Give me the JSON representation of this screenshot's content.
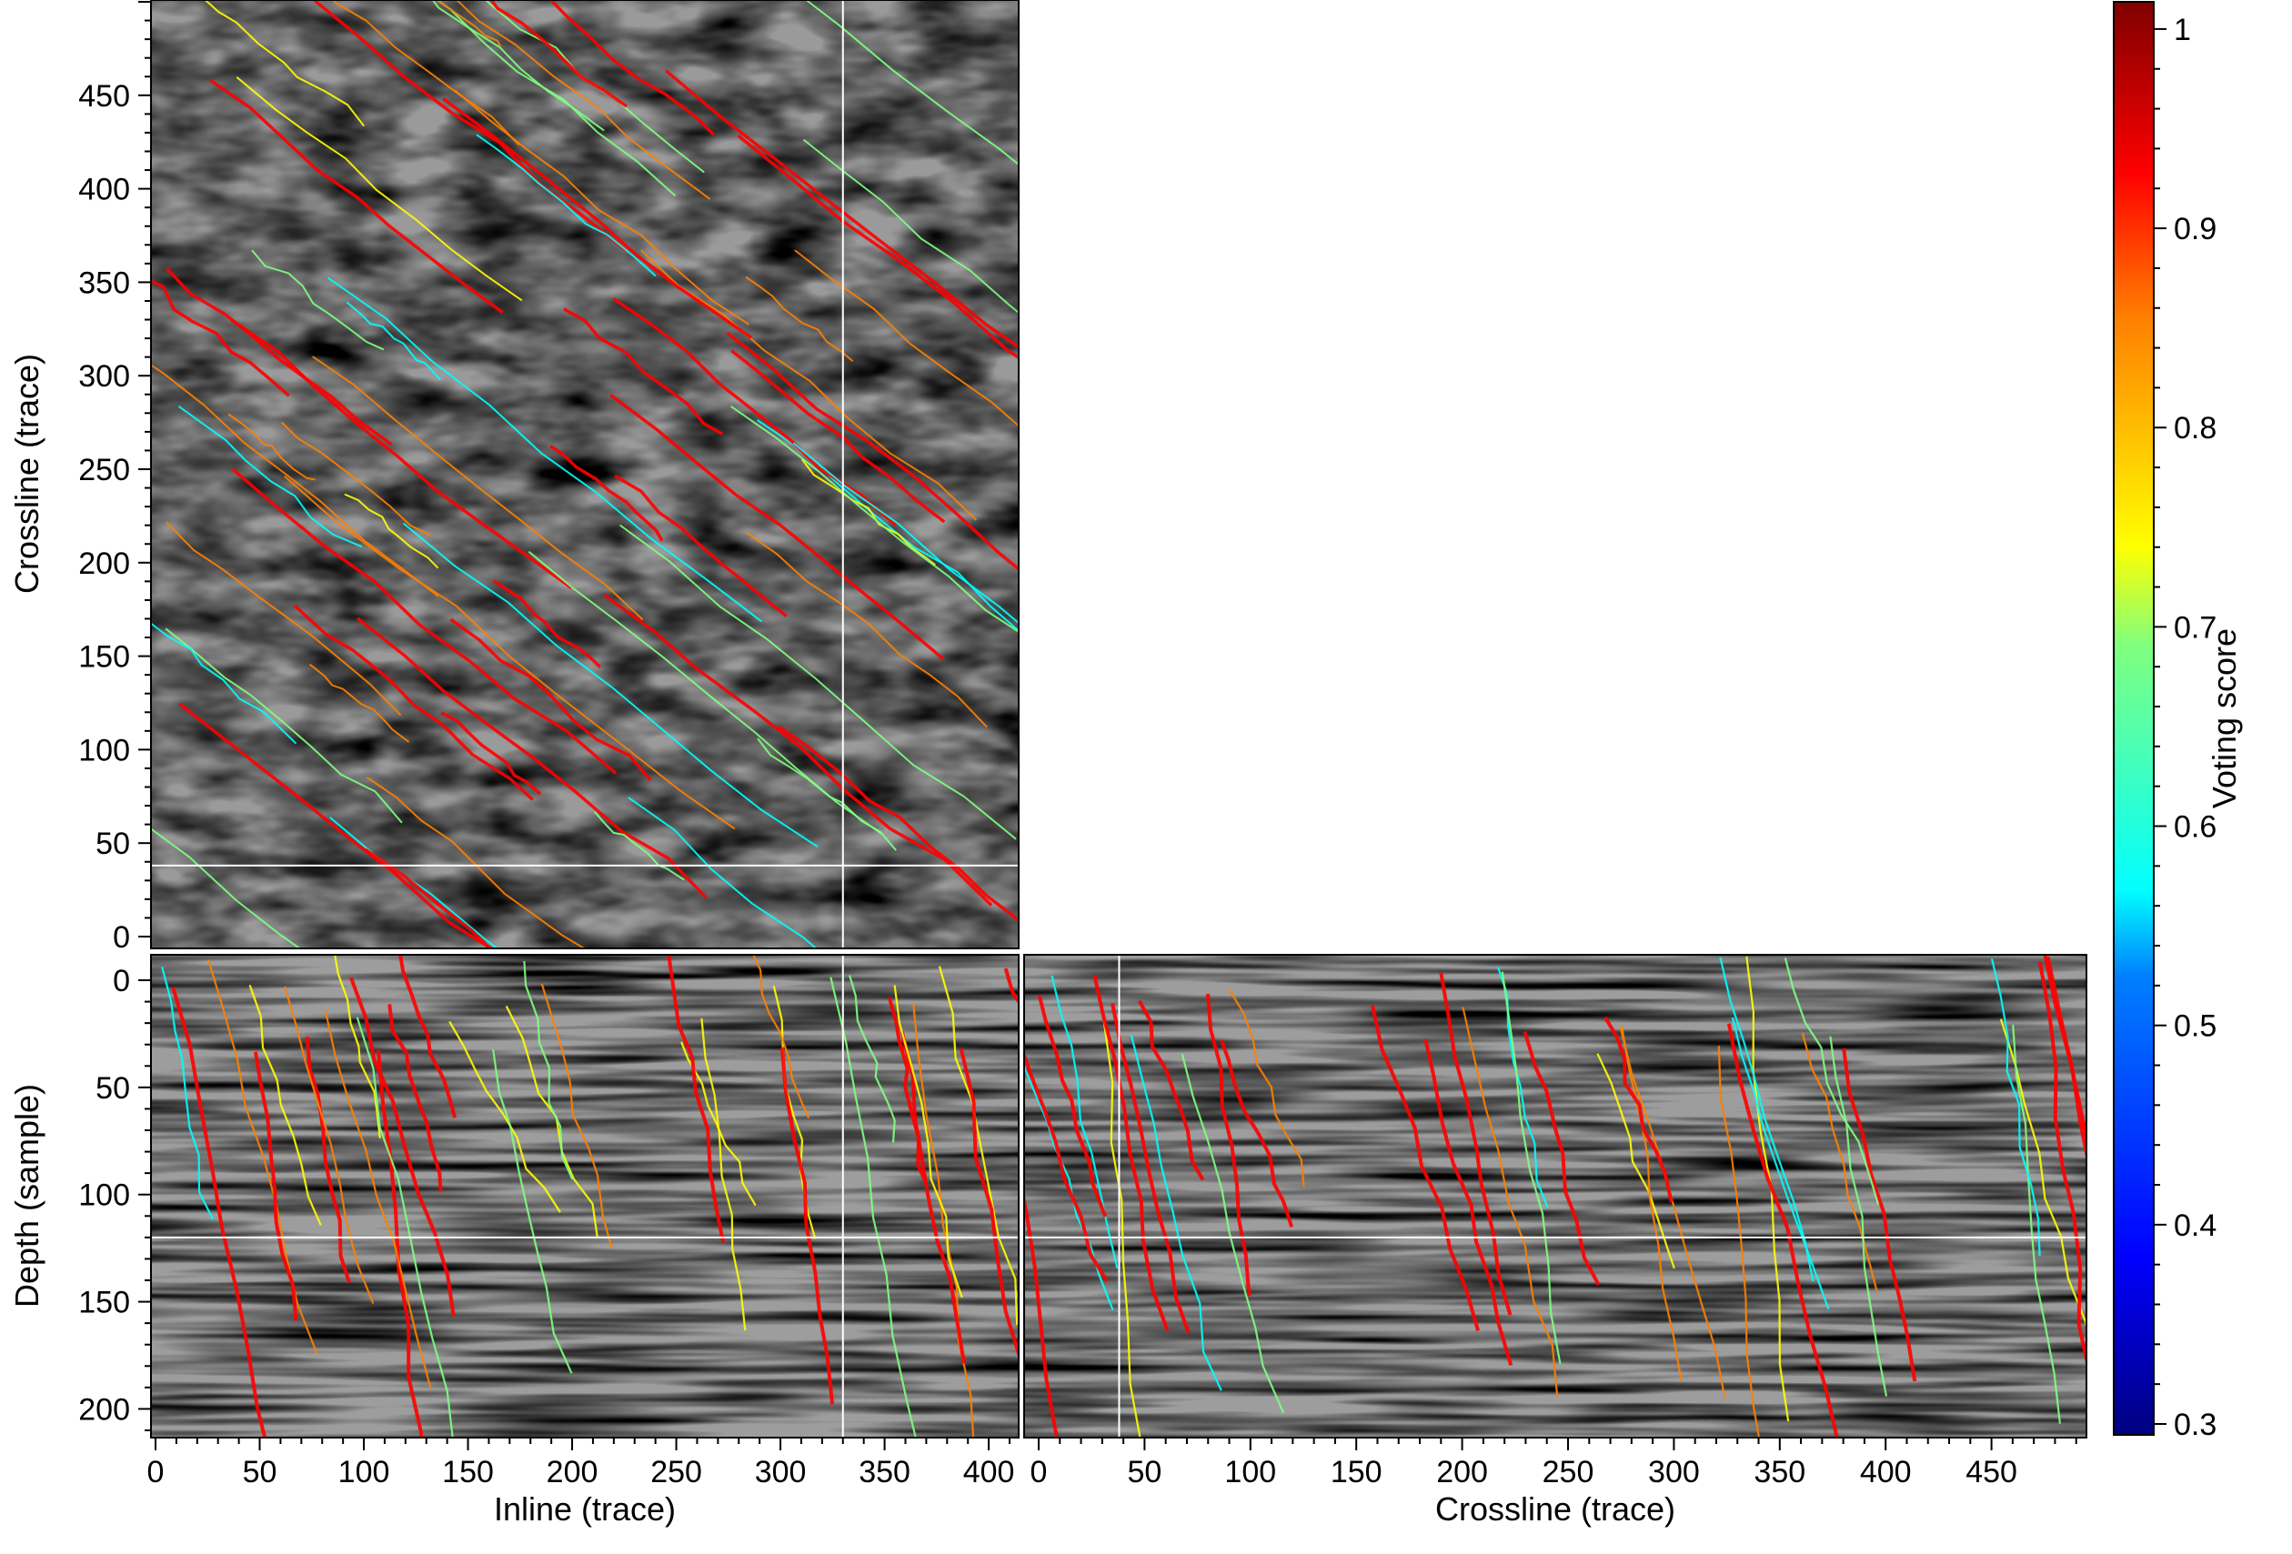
{
  "chart_data": [
    {
      "type": "heatmap",
      "panel": "time-slice",
      "xlabel": "",
      "ylabel": "Crossline (trace)",
      "xlim": [
        0,
        410
      ],
      "ylim": [
        0,
        500
      ],
      "yticks": [
        0,
        50,
        100,
        150,
        200,
        250,
        300,
        350,
        400,
        450
      ],
      "y_orientation": "bottom-to-top",
      "crosshair": {
        "inline": 330,
        "crossline": 38
      },
      "content": "grayscale seismic time slice overlain with fault traces colored by voting score"
    },
    {
      "type": "heatmap",
      "panel": "inline-section",
      "xlabel": "Inline (trace)",
      "ylabel": "Depth (sample)",
      "xlim": [
        0,
        410
      ],
      "ylim": [
        0,
        210
      ],
      "xticks": [
        0,
        50,
        100,
        150,
        200,
        250,
        300,
        350,
        400
      ],
      "yticks": [
        0,
        50,
        100,
        150,
        200
      ],
      "y_orientation": "top-to-bottom",
      "crosshair": {
        "inline": 330,
        "depth": 120
      },
      "content": "grayscale seismic inline section overlain with fault traces colored by voting score"
    },
    {
      "type": "heatmap",
      "panel": "crossline-section",
      "xlabel": "Crossline (trace)",
      "ylabel": "",
      "xlim": [
        0,
        500
      ],
      "ylim": [
        0,
        210
      ],
      "xticks": [
        0,
        50,
        100,
        150,
        200,
        250,
        300,
        350,
        400,
        450
      ],
      "y_orientation": "top-to-bottom",
      "crosshair": {
        "crossline": 38,
        "depth": 120
      },
      "content": "grayscale seismic crossline section overlain with fault traces colored by voting score"
    }
  ],
  "colorbar": {
    "label": "Voting score",
    "range": [
      0.3,
      1.01
    ],
    "ticks": [
      0.3,
      0.4,
      0.5,
      0.6,
      0.7,
      0.8,
      0.9,
      1
    ],
    "tick_labels": [
      "0.3",
      "0.4",
      "0.5",
      "0.6",
      "0.7",
      "0.8",
      "0.9",
      "1"
    ],
    "colormap": "jet",
    "colors": [
      "#00007f",
      "#0000ff",
      "#007fff",
      "#00ffff",
      "#7fff7f",
      "#ffff00",
      "#ff7f00",
      "#ff0000",
      "#7f0000"
    ]
  }
}
